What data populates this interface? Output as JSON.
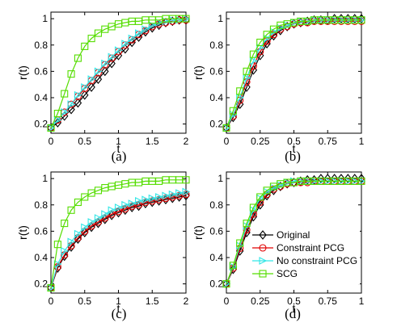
{
  "series_styles": [
    {
      "name": "Original",
      "color": "#000000",
      "marker": "diamond"
    },
    {
      "name": "Constraint PCG",
      "color": "#e00000",
      "marker": "circle"
    },
    {
      "name": "No constraint PCG",
      "color": "#33e6e6",
      "marker": "triangle-right"
    },
    {
      "name": "SCG",
      "color": "#55dd00",
      "marker": "square"
    }
  ],
  "chart_data": [
    {
      "type": "line",
      "panel_label": "(a)",
      "xlabel": "t",
      "ylabel": "r(t)",
      "xlim": [
        0,
        2
      ],
      "ylim": [
        0.13,
        1.05
      ],
      "xticks": [
        0,
        0.5,
        1,
        1.5,
        2
      ],
      "xtick_labels": [
        "0",
        "0.5",
        "1",
        "1.5",
        "2"
      ],
      "yticks": [
        0.2,
        0.4,
        0.6,
        0.8,
        1
      ],
      "ytick_labels": [
        "0.2",
        "0.4",
        "0.6",
        "0.8",
        "1"
      ],
      "x": [
        0,
        0.1,
        0.2,
        0.3,
        0.4,
        0.5,
        0.6,
        0.7,
        0.8,
        0.9,
        1.0,
        1.1,
        1.2,
        1.3,
        1.4,
        1.5,
        1.6,
        1.7,
        1.8,
        1.9,
        2.0
      ],
      "series": [
        {
          "name": "Original",
          "values": [
            0.17,
            0.21,
            0.26,
            0.31,
            0.36,
            0.42,
            0.48,
            0.54,
            0.6,
            0.66,
            0.72,
            0.77,
            0.82,
            0.86,
            0.9,
            0.93,
            0.95,
            0.97,
            0.98,
            0.99,
            0.99
          ]
        },
        {
          "name": "Constraint PCG",
          "values": [
            0.17,
            0.23,
            0.29,
            0.35,
            0.41,
            0.47,
            0.53,
            0.59,
            0.65,
            0.7,
            0.75,
            0.8,
            0.84,
            0.88,
            0.91,
            0.94,
            0.96,
            0.97,
            0.98,
            0.99,
            0.99
          ]
        },
        {
          "name": "No constraint PCG",
          "values": [
            0.17,
            0.23,
            0.29,
            0.35,
            0.42,
            0.48,
            0.54,
            0.6,
            0.66,
            0.71,
            0.76,
            0.81,
            0.85,
            0.89,
            0.92,
            0.95,
            0.97,
            0.98,
            0.99,
            0.99,
            1.0
          ]
        },
        {
          "name": "SCG",
          "values": [
            0.17,
            0.28,
            0.43,
            0.58,
            0.7,
            0.79,
            0.85,
            0.89,
            0.92,
            0.94,
            0.96,
            0.97,
            0.98,
            0.98,
            0.99,
            0.99,
            0.99,
            1.0,
            1.0,
            1.0,
            1.0
          ]
        }
      ]
    },
    {
      "type": "line",
      "panel_label": "(b)",
      "xlabel": "t",
      "ylabel": "r(t)",
      "xlim": [
        0,
        1
      ],
      "ylim": [
        0.13,
        1.05
      ],
      "xticks": [
        0,
        0.25,
        0.5,
        0.75,
        1
      ],
      "xtick_labels": [
        "0",
        "0.25",
        "0.5",
        "0.75",
        "1"
      ],
      "yticks": [
        0.2,
        0.4,
        0.6,
        0.8,
        1
      ],
      "ytick_labels": [
        "0.2",
        "0.4",
        "0.6",
        "0.8",
        "1"
      ],
      "x": [
        0,
        0.05,
        0.1,
        0.15,
        0.2,
        0.25,
        0.3,
        0.35,
        0.4,
        0.45,
        0.5,
        0.55,
        0.6,
        0.65,
        0.7,
        0.75,
        0.8,
        0.85,
        0.9,
        0.95,
        1.0
      ],
      "series": [
        {
          "name": "Original",
          "values": [
            0.17,
            0.25,
            0.35,
            0.48,
            0.61,
            0.72,
            0.81,
            0.87,
            0.91,
            0.94,
            0.96,
            0.97,
            0.98,
            0.99,
            0.99,
            0.99,
            1.0,
            1.0,
            1.0,
            1.0,
            1.0
          ]
        },
        {
          "name": "Constraint PCG",
          "values": [
            0.17,
            0.26,
            0.38,
            0.52,
            0.64,
            0.75,
            0.83,
            0.88,
            0.92,
            0.94,
            0.96,
            0.97,
            0.97,
            0.98,
            0.98,
            0.98,
            0.98,
            0.98,
            0.98,
            0.98,
            0.98
          ]
        },
        {
          "name": "No constraint PCG",
          "values": [
            0.17,
            0.27,
            0.4,
            0.55,
            0.68,
            0.78,
            0.85,
            0.9,
            0.93,
            0.95,
            0.97,
            0.98,
            0.98,
            0.99,
            0.99,
            0.99,
            0.99,
            0.99,
            0.99,
            0.99,
            0.99
          ]
        },
        {
          "name": "SCG",
          "values": [
            0.17,
            0.3,
            0.45,
            0.6,
            0.73,
            0.82,
            0.88,
            0.92,
            0.95,
            0.96,
            0.97,
            0.98,
            0.98,
            0.99,
            0.99,
            0.99,
            0.99,
            0.99,
            0.99,
            0.99,
            0.99
          ]
        }
      ]
    },
    {
      "type": "line",
      "panel_label": "(c)",
      "xlabel": "t",
      "ylabel": "r(t)",
      "xlim": [
        0,
        2
      ],
      "ylim": [
        0.13,
        1.05
      ],
      "xticks": [
        0,
        0.5,
        1,
        1.5,
        2
      ],
      "xtick_labels": [
        "0",
        "0.5",
        "1",
        "1.5",
        "2"
      ],
      "yticks": [
        0.2,
        0.4,
        0.6,
        0.8,
        1
      ],
      "ytick_labels": [
        "0.2",
        "0.4",
        "0.6",
        "0.8",
        "1"
      ],
      "x": [
        0,
        0.1,
        0.2,
        0.3,
        0.4,
        0.5,
        0.6,
        0.7,
        0.8,
        0.9,
        1.0,
        1.1,
        1.2,
        1.3,
        1.4,
        1.5,
        1.6,
        1.7,
        1.8,
        1.9,
        2.0
      ],
      "series": [
        {
          "name": "Original",
          "values": [
            0.17,
            0.32,
            0.41,
            0.48,
            0.54,
            0.59,
            0.63,
            0.66,
            0.69,
            0.72,
            0.74,
            0.76,
            0.78,
            0.79,
            0.81,
            0.82,
            0.83,
            0.84,
            0.85,
            0.86,
            0.87
          ]
        },
        {
          "name": "Constraint PCG",
          "values": [
            0.17,
            0.33,
            0.42,
            0.49,
            0.55,
            0.6,
            0.64,
            0.67,
            0.7,
            0.73,
            0.75,
            0.77,
            0.79,
            0.8,
            0.82,
            0.83,
            0.84,
            0.85,
            0.86,
            0.87,
            0.88
          ]
        },
        {
          "name": "No constraint PCG",
          "values": [
            0.17,
            0.35,
            0.45,
            0.52,
            0.58,
            0.63,
            0.67,
            0.7,
            0.73,
            0.76,
            0.78,
            0.8,
            0.81,
            0.83,
            0.84,
            0.85,
            0.86,
            0.87,
            0.88,
            0.89,
            0.9
          ]
        },
        {
          "name": "SCG",
          "values": [
            0.17,
            0.5,
            0.66,
            0.76,
            0.82,
            0.86,
            0.89,
            0.91,
            0.93,
            0.94,
            0.95,
            0.96,
            0.97,
            0.97,
            0.98,
            0.98,
            0.98,
            0.99,
            0.99,
            0.99,
            0.99
          ]
        }
      ]
    },
    {
      "type": "line",
      "panel_label": "(d)",
      "xlabel": "t",
      "ylabel": "r(t)",
      "xlim": [
        0,
        1
      ],
      "ylim": [
        0.13,
        1.05
      ],
      "xticks": [
        0,
        0.25,
        0.5,
        0.75,
        1
      ],
      "xtick_labels": [
        "0",
        "0.25",
        "0.5",
        "0.75",
        "1"
      ],
      "yticks": [
        0.2,
        0.4,
        0.6,
        0.8,
        1
      ],
      "ytick_labels": [
        "0.2",
        "0.4",
        "0.6",
        "0.8",
        "1"
      ],
      "legend": {
        "placement": "lower-right",
        "entries": [
          "Original",
          "Constraint PCG",
          "No constraint PCG",
          "SCG"
        ]
      },
      "x": [
        0,
        0.05,
        0.1,
        0.15,
        0.2,
        0.25,
        0.3,
        0.35,
        0.4,
        0.45,
        0.5,
        0.55,
        0.6,
        0.65,
        0.7,
        0.75,
        0.8,
        0.85,
        0.9,
        0.95,
        1.0
      ],
      "series": [
        {
          "name": "Original",
          "values": [
            0.2,
            0.31,
            0.45,
            0.59,
            0.71,
            0.8,
            0.87,
            0.91,
            0.94,
            0.96,
            0.97,
            0.98,
            0.99,
            0.99,
            1.0,
            1.0,
            1.0,
            1.0,
            1.0,
            1.0,
            1.0
          ]
        },
        {
          "name": "Constraint PCG",
          "values": [
            0.2,
            0.32,
            0.47,
            0.61,
            0.73,
            0.82,
            0.88,
            0.92,
            0.94,
            0.96,
            0.97,
            0.97,
            0.97,
            0.98,
            0.98,
            0.98,
            0.98,
            0.98,
            0.98,
            0.98,
            0.98
          ]
        },
        {
          "name": "No constraint PCG",
          "values": [
            0.2,
            0.33,
            0.49,
            0.64,
            0.76,
            0.85,
            0.9,
            0.93,
            0.95,
            0.97,
            0.98,
            0.98,
            0.98,
            0.98,
            0.98,
            0.98,
            0.98,
            0.98,
            0.98,
            0.98,
            0.98
          ]
        },
        {
          "name": "SCG",
          "values": [
            0.2,
            0.34,
            0.51,
            0.66,
            0.78,
            0.86,
            0.91,
            0.94,
            0.96,
            0.97,
            0.97,
            0.98,
            0.98,
            0.98,
            0.98,
            0.98,
            0.98,
            0.98,
            0.98,
            0.98,
            0.98
          ]
        }
      ]
    }
  ]
}
